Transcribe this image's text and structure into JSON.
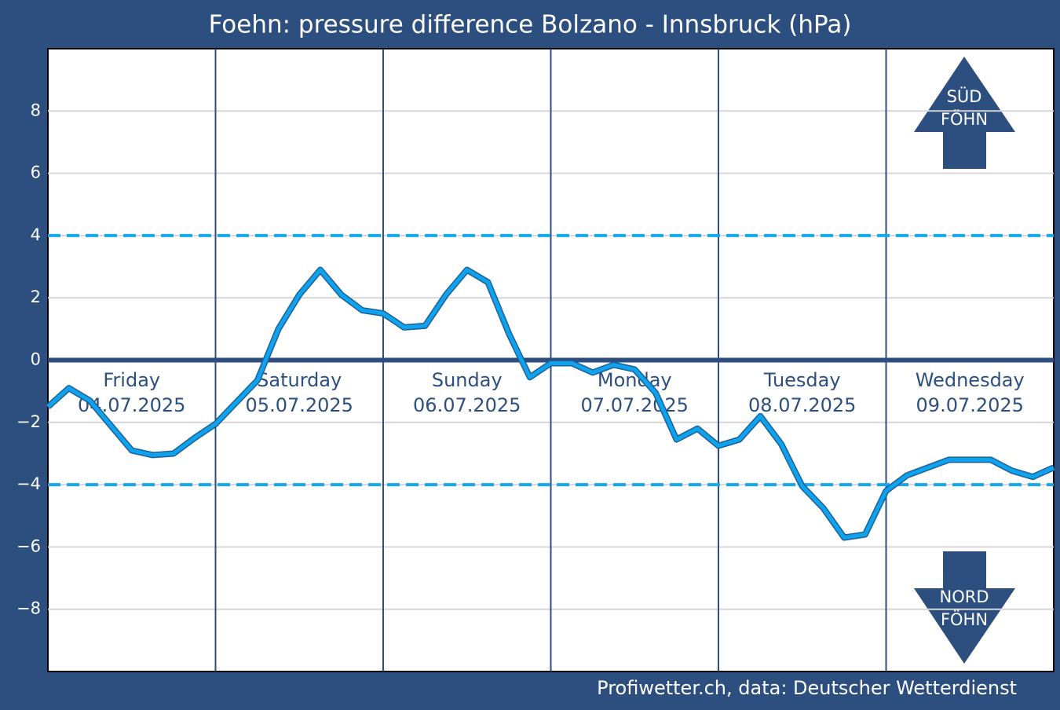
{
  "chart_data": {
    "type": "line",
    "title": "Foehn: pressure difference Bolzano - Innsbruck (hPa)",
    "source": "Profiwetter.ch, data: Deutscher Wetterdienst",
    "arrow_up": [
      "SÜD",
      "FÖHN"
    ],
    "arrow_down": [
      "NORD",
      "FÖHN"
    ],
    "days": [
      {
        "name": "Friday",
        "date": "04.07.2025"
      },
      {
        "name": "Saturday",
        "date": "05.07.2025"
      },
      {
        "name": "Sunday",
        "date": "06.07.2025"
      },
      {
        "name": "Monday",
        "date": "07.07.2025"
      },
      {
        "name": "Tuesday",
        "date": "08.07.2025"
      },
      {
        "name": "Wednesday",
        "date": "09.07.2025"
      }
    ],
    "x": [
      0,
      3,
      6,
      9,
      12,
      15,
      18,
      21,
      24,
      27,
      30,
      33,
      36,
      39,
      42,
      45,
      48,
      51,
      54,
      57,
      60,
      63,
      66,
      69,
      72,
      75,
      78,
      81,
      84,
      87,
      90,
      93,
      96,
      99,
      102,
      105,
      108,
      111,
      114,
      117,
      120,
      123,
      126,
      129,
      132,
      135,
      138,
      141,
      144
    ],
    "series": [
      {
        "color": "#0fa3ec",
        "values": [
          -1.5,
          -0.9,
          -1.3,
          -2.1,
          -2.9,
          -3.05,
          -3.0,
          -2.5,
          -2.05,
          -1.35,
          -0.65,
          1.0,
          2.1,
          2.9,
          2.1,
          1.6,
          1.5,
          1.05,
          1.1,
          2.1,
          2.9,
          2.5,
          0.85,
          -0.55,
          -0.1,
          -0.1,
          -0.4,
          -0.15,
          -0.3,
          -1.05,
          -2.55,
          -2.2,
          -2.75,
          -2.55,
          -1.8,
          -2.7,
          -4.05,
          -4.75,
          -5.7,
          -5.6,
          -4.2,
          -3.7,
          -3.45,
          -3.2,
          -3.2,
          -3.2,
          -3.55,
          -3.75,
          -3.45
        ]
      }
    ],
    "xlim": [
      0,
      144
    ],
    "xticks": [
      24,
      48,
      72,
      96,
      120
    ],
    "ylim": [
      -10,
      10
    ],
    "yticks": [
      {
        "value": -8,
        "label": "−8"
      },
      {
        "value": -6,
        "label": "−6"
      },
      {
        "value": -4,
        "label": "−4"
      },
      {
        "value": -2,
        "label": "−2"
      },
      0,
      2,
      4,
      6,
      8
    ],
    "thresholds": [
      4,
      -4
    ],
    "grid": true
  }
}
